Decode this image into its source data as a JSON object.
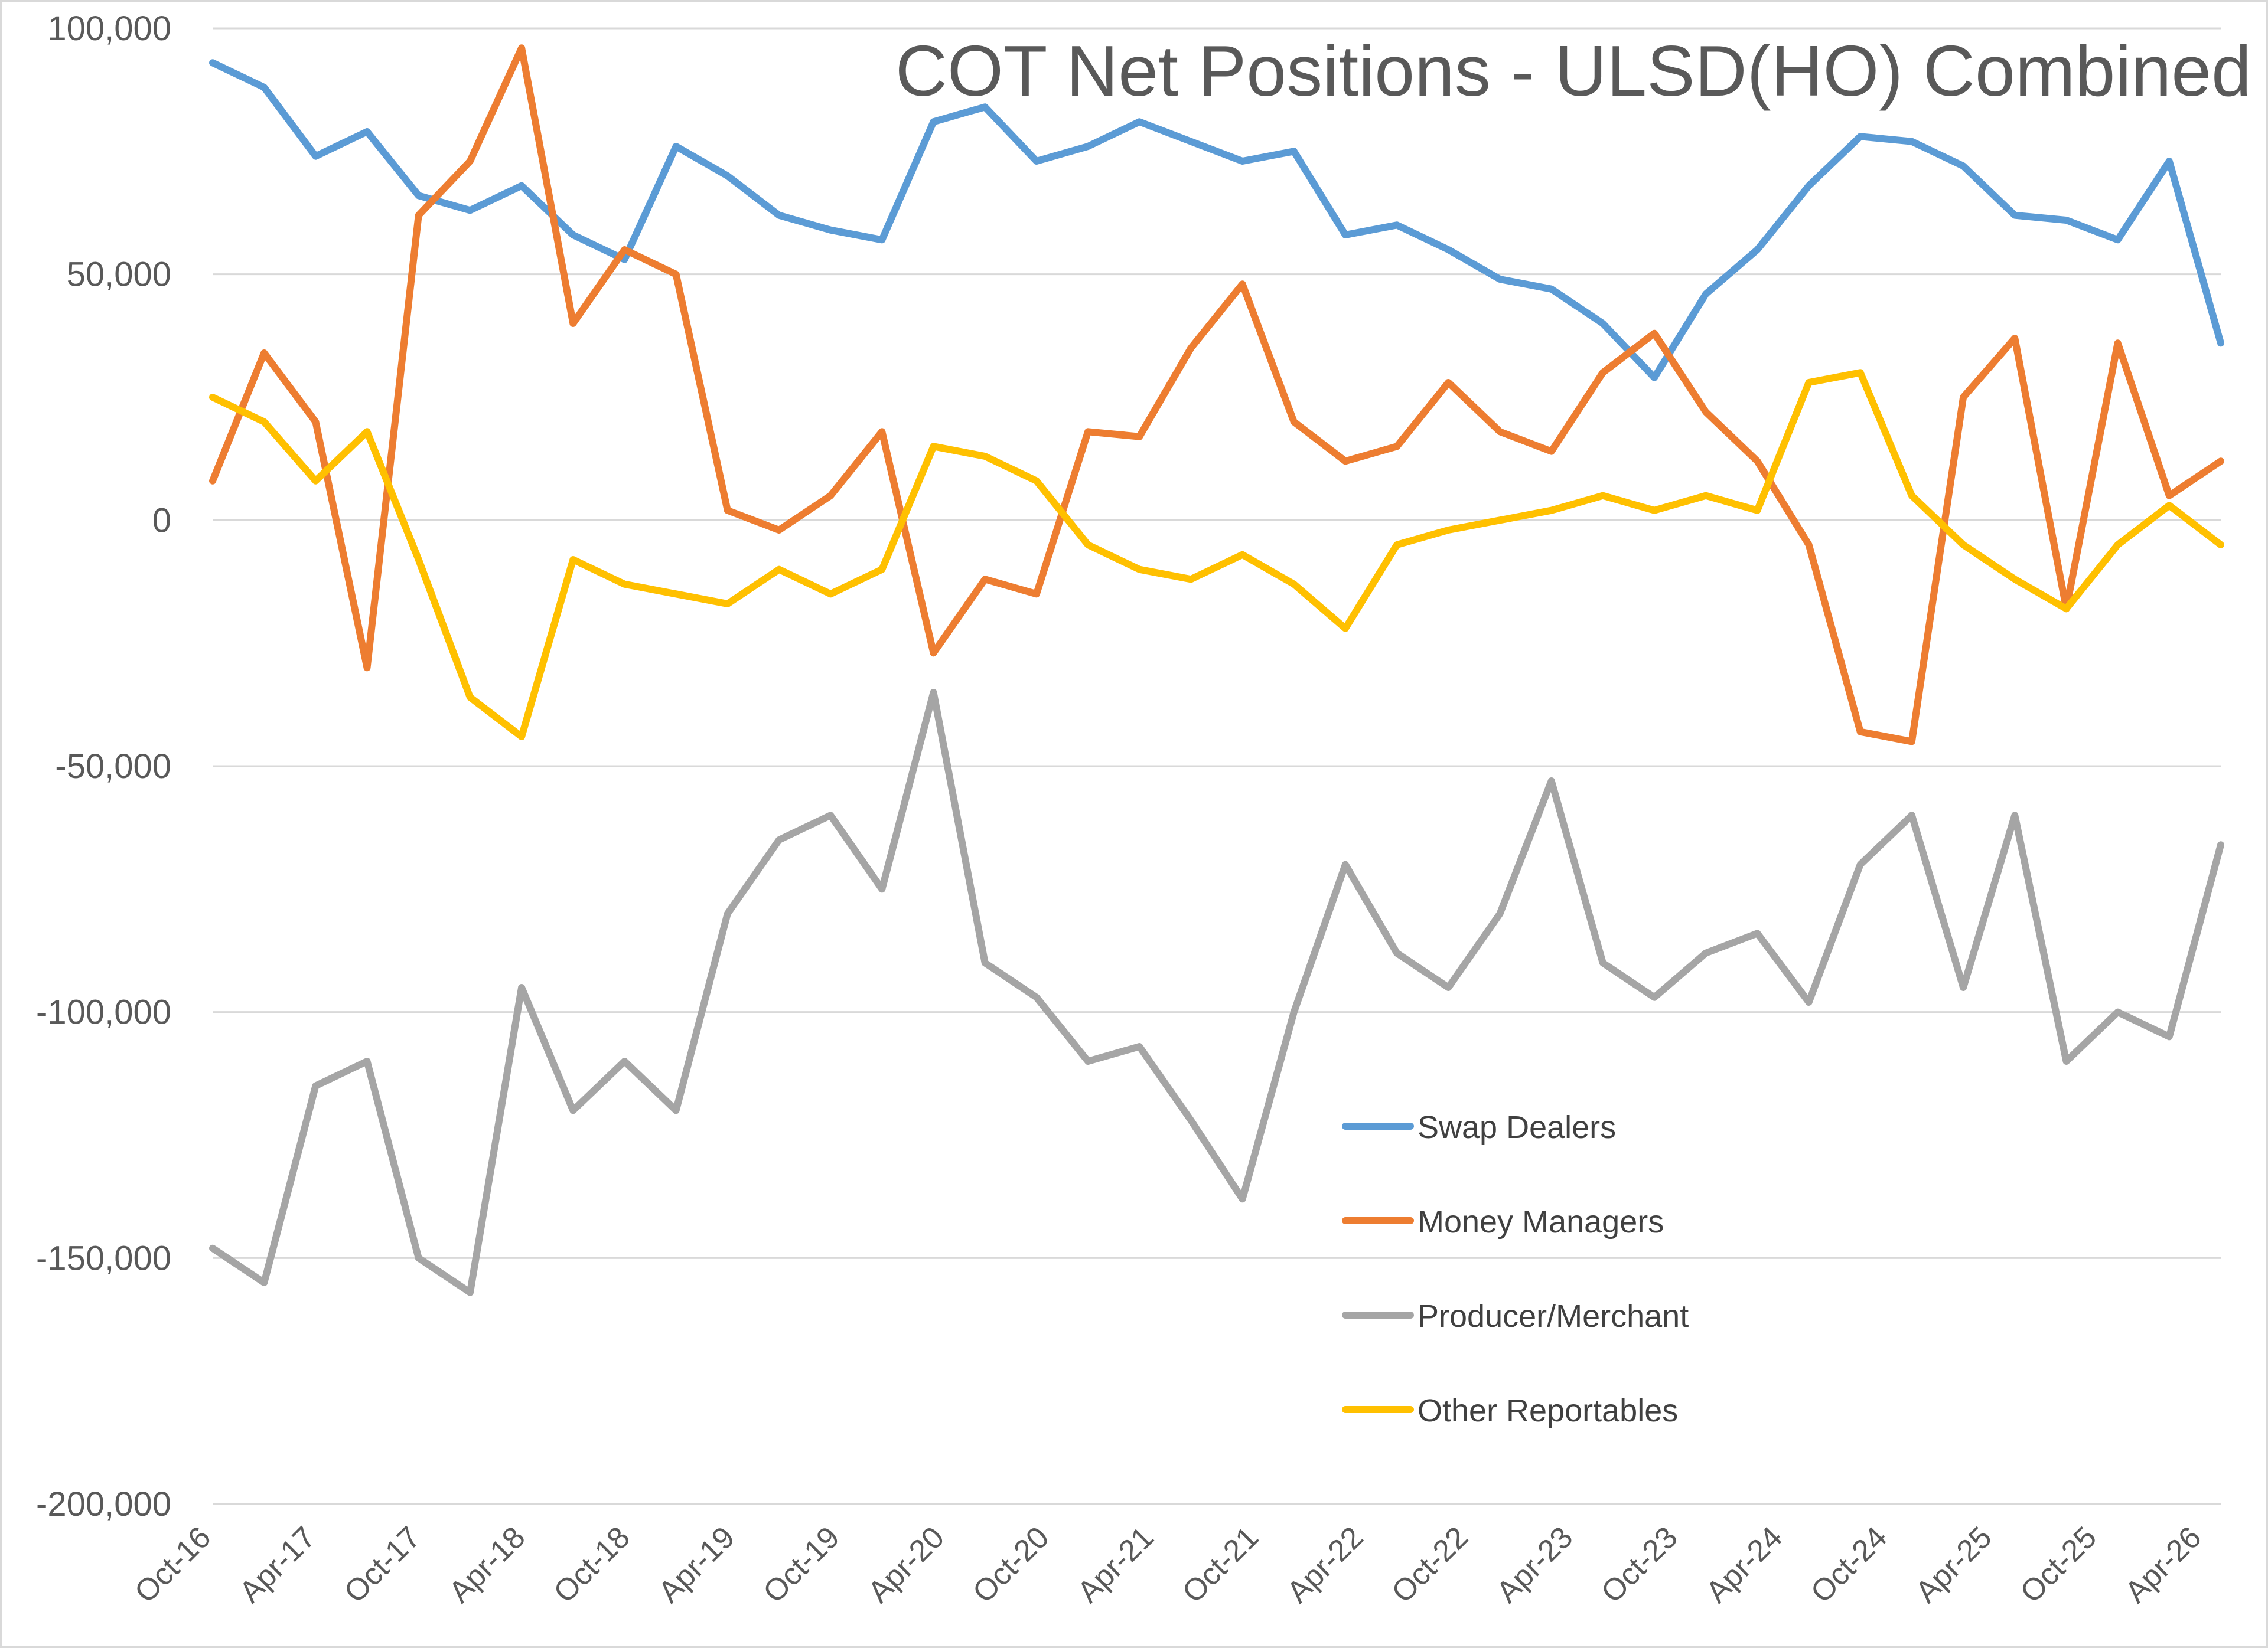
{
  "chart_data": {
    "type": "line",
    "title": "COT Net Positions - ULSD(HO) Combined",
    "xlabel": "",
    "ylabel": "",
    "ylim": [
      -200000,
      100000
    ],
    "yticks": [
      100000,
      50000,
      0,
      -50000,
      -100000,
      -150000,
      -200000
    ],
    "ytick_labels": [
      "100,000",
      "50,000",
      "0",
      "-50,000",
      "-100,000",
      "-150,000",
      "-200,000"
    ],
    "x_tick_labels": [
      "Oct-16",
      "Apr-17",
      "Oct-17",
      "Apr-18",
      "Oct-18",
      "Apr-19",
      "Oct-19",
      "Apr-20",
      "Oct-20",
      "Apr-21",
      "Oct-21",
      "Apr-22",
      "Oct-22",
      "Apr-23",
      "Oct-23",
      "Apr-24",
      "Oct-24",
      "Apr-25",
      "Oct-25",
      "Apr-26"
    ],
    "x": [
      "Oct-16",
      "Jan-17",
      "Apr-17",
      "Jul-17",
      "Oct-17",
      "Jan-18",
      "Apr-18",
      "Jul-18",
      "Oct-18",
      "Jan-19",
      "Apr-19",
      "Jul-19",
      "Oct-19",
      "Jan-20",
      "Apr-20",
      "Jul-20",
      "Oct-20",
      "Jan-21",
      "Apr-21",
      "Jul-21",
      "Oct-21",
      "Jan-22",
      "Apr-22",
      "Jul-22",
      "Oct-22",
      "Jan-23",
      "Apr-23",
      "Jul-23",
      "Oct-23",
      "Jan-24",
      "Apr-24",
      "Jul-24",
      "Oct-24",
      "Jan-25",
      "Apr-25",
      "Jul-25",
      "Oct-25",
      "Jan-26",
      "Apr-26",
      "Jun-26"
    ],
    "grid": true,
    "legend_position": "center-right",
    "series": [
      {
        "name": "Swap Dealers",
        "color": "#5b9bd5",
        "values": [
          93000,
          88000,
          74000,
          79000,
          66000,
          63000,
          68000,
          58000,
          53000,
          76000,
          70000,
          62000,
          59000,
          57000,
          81000,
          84000,
          73000,
          76000,
          81000,
          77000,
          73000,
          75000,
          58000,
          60000,
          55000,
          49000,
          47000,
          40000,
          29000,
          46000,
          55000,
          68000,
          78000,
          77000,
          72000,
          62000,
          61000,
          57000,
          73000,
          36000
        ]
      },
      {
        "name": "Money Managers",
        "color": "#ed7d31",
        "values": [
          8000,
          34000,
          20000,
          -30000,
          62000,
          73000,
          96000,
          40000,
          55000,
          50000,
          2000,
          -2000,
          5000,
          18000,
          -27000,
          -12000,
          -15000,
          18000,
          17000,
          35000,
          48000,
          20000,
          12000,
          15000,
          28000,
          18000,
          14000,
          30000,
          38000,
          22000,
          12000,
          -5000,
          -43000,
          -45000,
          25000,
          37000,
          -18000,
          36000,
          5000,
          12000
        ]
      },
      {
        "name": "Producer/Merchant",
        "color": "#a5a5a5",
        "values": [
          -148000,
          -155000,
          -115000,
          -110000,
          -150000,
          -157000,
          -95000,
          -120000,
          -110000,
          -120000,
          -80000,
          -65000,
          -60000,
          -75000,
          -35000,
          -90000,
          -97000,
          -110000,
          -107000,
          -122000,
          -138000,
          -100000,
          -70000,
          -88000,
          -95000,
          -80000,
          -53000,
          -90000,
          -97000,
          -88000,
          -84000,
          -98000,
          -70000,
          -60000,
          -95000,
          -60000,
          -110000,
          -100000,
          -105000,
          -66000
        ]
      },
      {
        "name": "Other Reportables",
        "color": "#ffc000",
        "values": [
          25000,
          20000,
          8000,
          18000,
          -8000,
          -36000,
          -44000,
          -8000,
          -13000,
          -15000,
          -17000,
          -10000,
          -15000,
          -10000,
          15000,
          13000,
          8000,
          -5000,
          -10000,
          -12000,
          -7000,
          -13000,
          -22000,
          -5000,
          -2000,
          0,
          2000,
          5000,
          2000,
          5000,
          2000,
          28000,
          30000,
          5000,
          -5000,
          -12000,
          -18000,
          -5000,
          3000,
          -5000
        ]
      }
    ]
  }
}
